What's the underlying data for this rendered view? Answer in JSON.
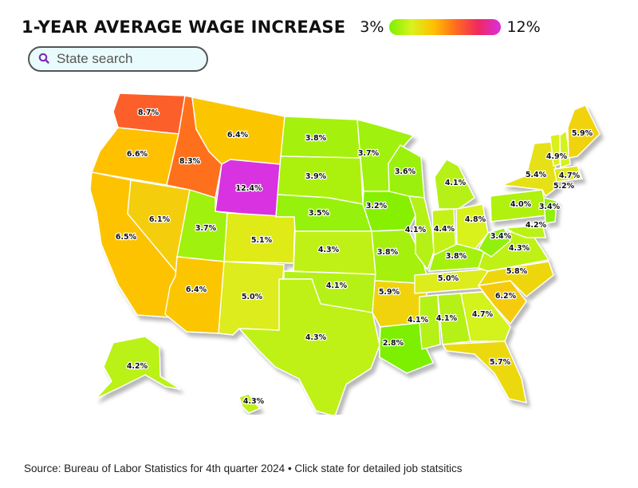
{
  "header": {
    "title": "1-YEAR AVERAGE WAGE INCREASE",
    "legend_min": "3%",
    "legend_max": "12%",
    "gradient_colors": [
      "#7CF000",
      "#D9F21E",
      "#FFC000",
      "#FF6A20",
      "#F02860",
      "#D930E0"
    ]
  },
  "search": {
    "placeholder": "State search",
    "icon": "magnifier-icon",
    "icon_color": "#7B2FB5"
  },
  "map": {
    "states": [
      {
        "id": "WA",
        "label": "8.7%"
      },
      {
        "id": "OR",
        "label": "6.6%"
      },
      {
        "id": "CA",
        "label": "6.5%"
      },
      {
        "id": "NV",
        "label": "6.1%"
      },
      {
        "id": "ID",
        "label": "8.3%"
      },
      {
        "id": "MT",
        "label": "6.4%"
      },
      {
        "id": "WY",
        "label": "12.4%"
      },
      {
        "id": "UT",
        "label": "3.7%"
      },
      {
        "id": "CO",
        "label": "5.1%"
      },
      {
        "id": "AZ",
        "label": "6.4%"
      },
      {
        "id": "NM",
        "label": "5.0%"
      },
      {
        "id": "ND",
        "label": "3.8%"
      },
      {
        "id": "SD",
        "label": "3.9%"
      },
      {
        "id": "NE",
        "label": "3.5%"
      },
      {
        "id": "KS",
        "label": "4.3%"
      },
      {
        "id": "OK",
        "label": "4.1%"
      },
      {
        "id": "TX",
        "label": "4.3%"
      },
      {
        "id": "MN",
        "label": "3.7%"
      },
      {
        "id": "IA",
        "label": "3.2%"
      },
      {
        "id": "MO",
        "label": "3.8%"
      },
      {
        "id": "AR",
        "label": "5.9%"
      },
      {
        "id": "LA",
        "label": "2.8%"
      },
      {
        "id": "WI",
        "label": "3.6%"
      },
      {
        "id": "IL",
        "label": "4.1%"
      },
      {
        "id": "MI",
        "label": "4.1%"
      },
      {
        "id": "IN",
        "label": "4.4%"
      },
      {
        "id": "OH",
        "label": "4.8%"
      },
      {
        "id": "KY",
        "label": "3.8%"
      },
      {
        "id": "TN",
        "label": "5.0%"
      },
      {
        "id": "MS",
        "label": "4.1%"
      },
      {
        "id": "AL",
        "label": "4.1%"
      },
      {
        "id": "GA",
        "label": "4.7%"
      },
      {
        "id": "FL",
        "label": "5.7%"
      },
      {
        "id": "SC",
        "label": "6.2%"
      },
      {
        "id": "NC",
        "label": "5.8%"
      },
      {
        "id": "VA",
        "label": "4.3%"
      },
      {
        "id": "WV",
        "label": "3.4%"
      },
      {
        "id": "MD",
        "label": "4.2%"
      },
      {
        "id": "PA",
        "label": "4.0%"
      },
      {
        "id": "NJ",
        "label": "3.4%"
      },
      {
        "id": "NY",
        "label": "5.4%"
      },
      {
        "id": "VT",
        "label": "4.9%"
      },
      {
        "id": "NH",
        "label": "4.7%"
      },
      {
        "id": "MA",
        "label": "5.2%"
      },
      {
        "id": "ME",
        "label": "5.9%"
      },
      {
        "id": "AK",
        "label": "4.2%"
      },
      {
        "id": "HI",
        "label": "4.3%"
      }
    ]
  },
  "footer": {
    "source": "Source: Bureau of Labor Statistics for 4th quarter 2024 • Click state for detailed job statsitics"
  }
}
